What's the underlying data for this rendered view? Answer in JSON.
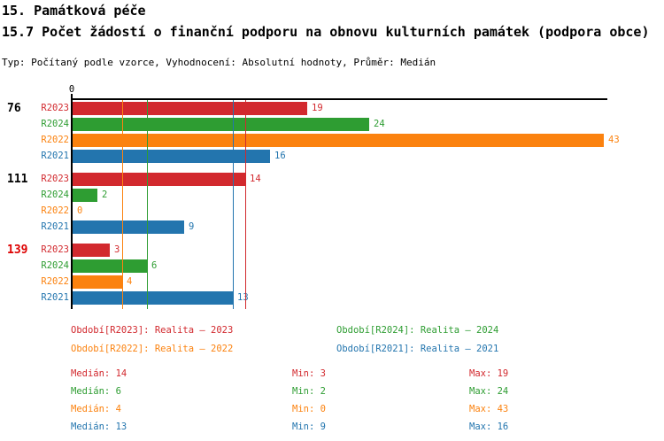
{
  "header": {
    "chapter": "15. Památková péče",
    "title": "15.7 Počet žádostí o finanční podporu na obnovu kulturních památek (podpora obce)",
    "meta": "Typ: Počítaný podle vzorce, Vyhodnocení: Absolutní hodnoty, Průměr: Medián"
  },
  "colors": {
    "R2023": "#d2292e",
    "R2024": "#2e9d32",
    "R2022": "#fb820f",
    "R2021": "#2375ae",
    "axis": "#000000",
    "group_label": "#000000",
    "highlighted_group_label": "#dd0000"
  },
  "chart_data": {
    "type": "bar",
    "orientation": "horizontal",
    "x_axis": {
      "zero_label": "0",
      "min": 0,
      "max": 43,
      "grid": "median-lines"
    },
    "series_order": [
      "R2023",
      "R2024",
      "R2022",
      "R2021"
    ],
    "groups": [
      {
        "label": "76",
        "highlighted": false,
        "bars": [
          {
            "series": "R2023",
            "value": 19
          },
          {
            "series": "R2024",
            "value": 24
          },
          {
            "series": "R2022",
            "value": 43
          },
          {
            "series": "R2021",
            "value": 16
          }
        ]
      },
      {
        "label": "111",
        "highlighted": false,
        "bars": [
          {
            "series": "R2023",
            "value": 14
          },
          {
            "series": "R2024",
            "value": 2
          },
          {
            "series": "R2022",
            "value": 0
          },
          {
            "series": "R2021",
            "value": 9
          }
        ]
      },
      {
        "label": "139",
        "highlighted": true,
        "bars": [
          {
            "series": "R2023",
            "value": 3
          },
          {
            "series": "R2024",
            "value": 6
          },
          {
            "series": "R2022",
            "value": 4
          },
          {
            "series": "R2021",
            "value": 13
          }
        ]
      }
    ],
    "median_lines": [
      {
        "series": "R2023",
        "value": 14
      },
      {
        "series": "R2024",
        "value": 6
      },
      {
        "series": "R2022",
        "value": 4
      },
      {
        "series": "R2021",
        "value": 13
      }
    ]
  },
  "legend": [
    {
      "series": "R2023",
      "text": "Období[R2023]: Realita – 2023"
    },
    {
      "series": "R2024",
      "text": "Období[R2024]: Realita – 2024"
    },
    {
      "series": "R2022",
      "text": "Období[R2022]: Realita – 2022"
    },
    {
      "series": "R2021",
      "text": "Období[R2021]: Realita – 2021"
    }
  ],
  "stat_labels": {
    "median": "Medián",
    "min": "Min",
    "max": "Max"
  },
  "stats": [
    {
      "series": "R2023",
      "median": 14,
      "min": 3,
      "max": 19
    },
    {
      "series": "R2024",
      "median": 6,
      "min": 2,
      "max": 24
    },
    {
      "series": "R2022",
      "median": 4,
      "min": 0,
      "max": 43
    },
    {
      "series": "R2021",
      "median": 13,
      "min": 9,
      "max": 16
    }
  ]
}
